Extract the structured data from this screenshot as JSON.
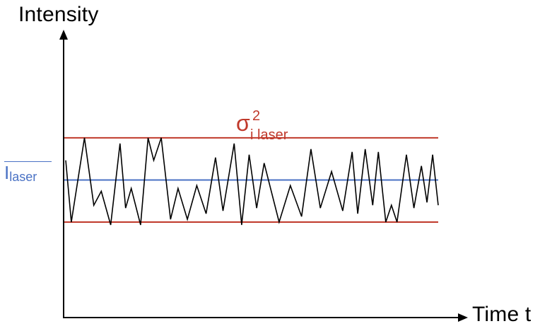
{
  "axes": {
    "y_label": "Intensity",
    "x_label": "Time t",
    "axis_color": "#000000"
  },
  "variance_label": {
    "symbol": "σ",
    "superscript": "2",
    "subscript": "i laser",
    "color": "#c0392b"
  },
  "mean_label": {
    "symbol": "I",
    "subscript": "laser",
    "color": "#4a72c4"
  },
  "lines": {
    "upper_bound_color": "#c0392b",
    "lower_bound_color": "#c0392b",
    "mean_color": "#4a72c4",
    "signal_color": "#000000"
  },
  "chart_data": {
    "type": "line",
    "ylim": [
      0,
      100
    ],
    "upper_bound": 64,
    "mean": 49,
    "lower_bound": 34,
    "x": [
      0,
      1.5,
      5,
      7.5,
      9.5,
      12,
      14.5,
      16,
      17.5,
      20,
      22,
      23.5,
      25.5,
      28,
      30,
      32.5,
      35,
      37.5,
      40,
      42,
      45,
      47,
      49,
      51,
      53,
      57,
      60,
      63,
      65.5,
      68,
      71,
      74,
      76.5,
      78,
      80,
      82,
      83.5,
      85.5,
      87,
      88.5,
      91,
      93,
      95,
      96.5,
      98,
      99.5
    ],
    "values": [
      56,
      34,
      64,
      40,
      45,
      33,
      62,
      39,
      46,
      33,
      64,
      56,
      64,
      35,
      46,
      35,
      47,
      37,
      57,
      38,
      62,
      33,
      58,
      39,
      55,
      34,
      47,
      36,
      60,
      39,
      52,
      38,
      59,
      37,
      60,
      40,
      59,
      34,
      40,
      34,
      58,
      39,
      54,
      41,
      58,
      40
    ]
  }
}
